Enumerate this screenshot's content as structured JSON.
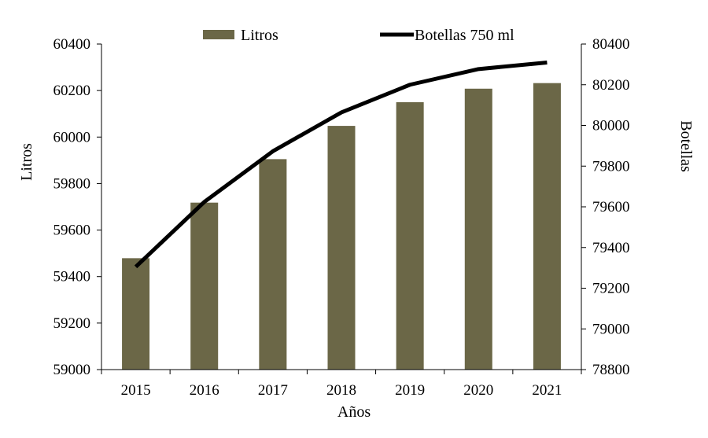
{
  "chart_data": {
    "type": "bar",
    "categories": [
      "2015",
      "2016",
      "2017",
      "2018",
      "2019",
      "2020",
      "2021"
    ],
    "series": [
      {
        "name": "Litros",
        "type": "bar",
        "axis": "left",
        "color": "#6b6747",
        "values": [
          59479,
          59718,
          59905,
          60048,
          60150,
          60208,
          60232
        ]
      },
      {
        "name": "Botellas 750 ml",
        "type": "line",
        "axis": "right",
        "color": "#000000",
        "values": [
          79305,
          79624,
          79873,
          80064,
          80200,
          80277,
          80309
        ]
      }
    ],
    "xlabel": "Años",
    "ylabel": "Litros",
    "y2label": "Botellas",
    "ylim": [
      59000,
      60400
    ],
    "y2lim": [
      78800,
      80400
    ],
    "yticks": [
      "59000",
      "59200",
      "59400",
      "59600",
      "59800",
      "60000",
      "60200",
      "60400"
    ],
    "y2ticks": [
      "78800",
      "79000",
      "79200",
      "79400",
      "79600",
      "79800",
      "80000",
      "80200",
      "80400"
    ],
    "legend_position": "top",
    "grid": false
  }
}
